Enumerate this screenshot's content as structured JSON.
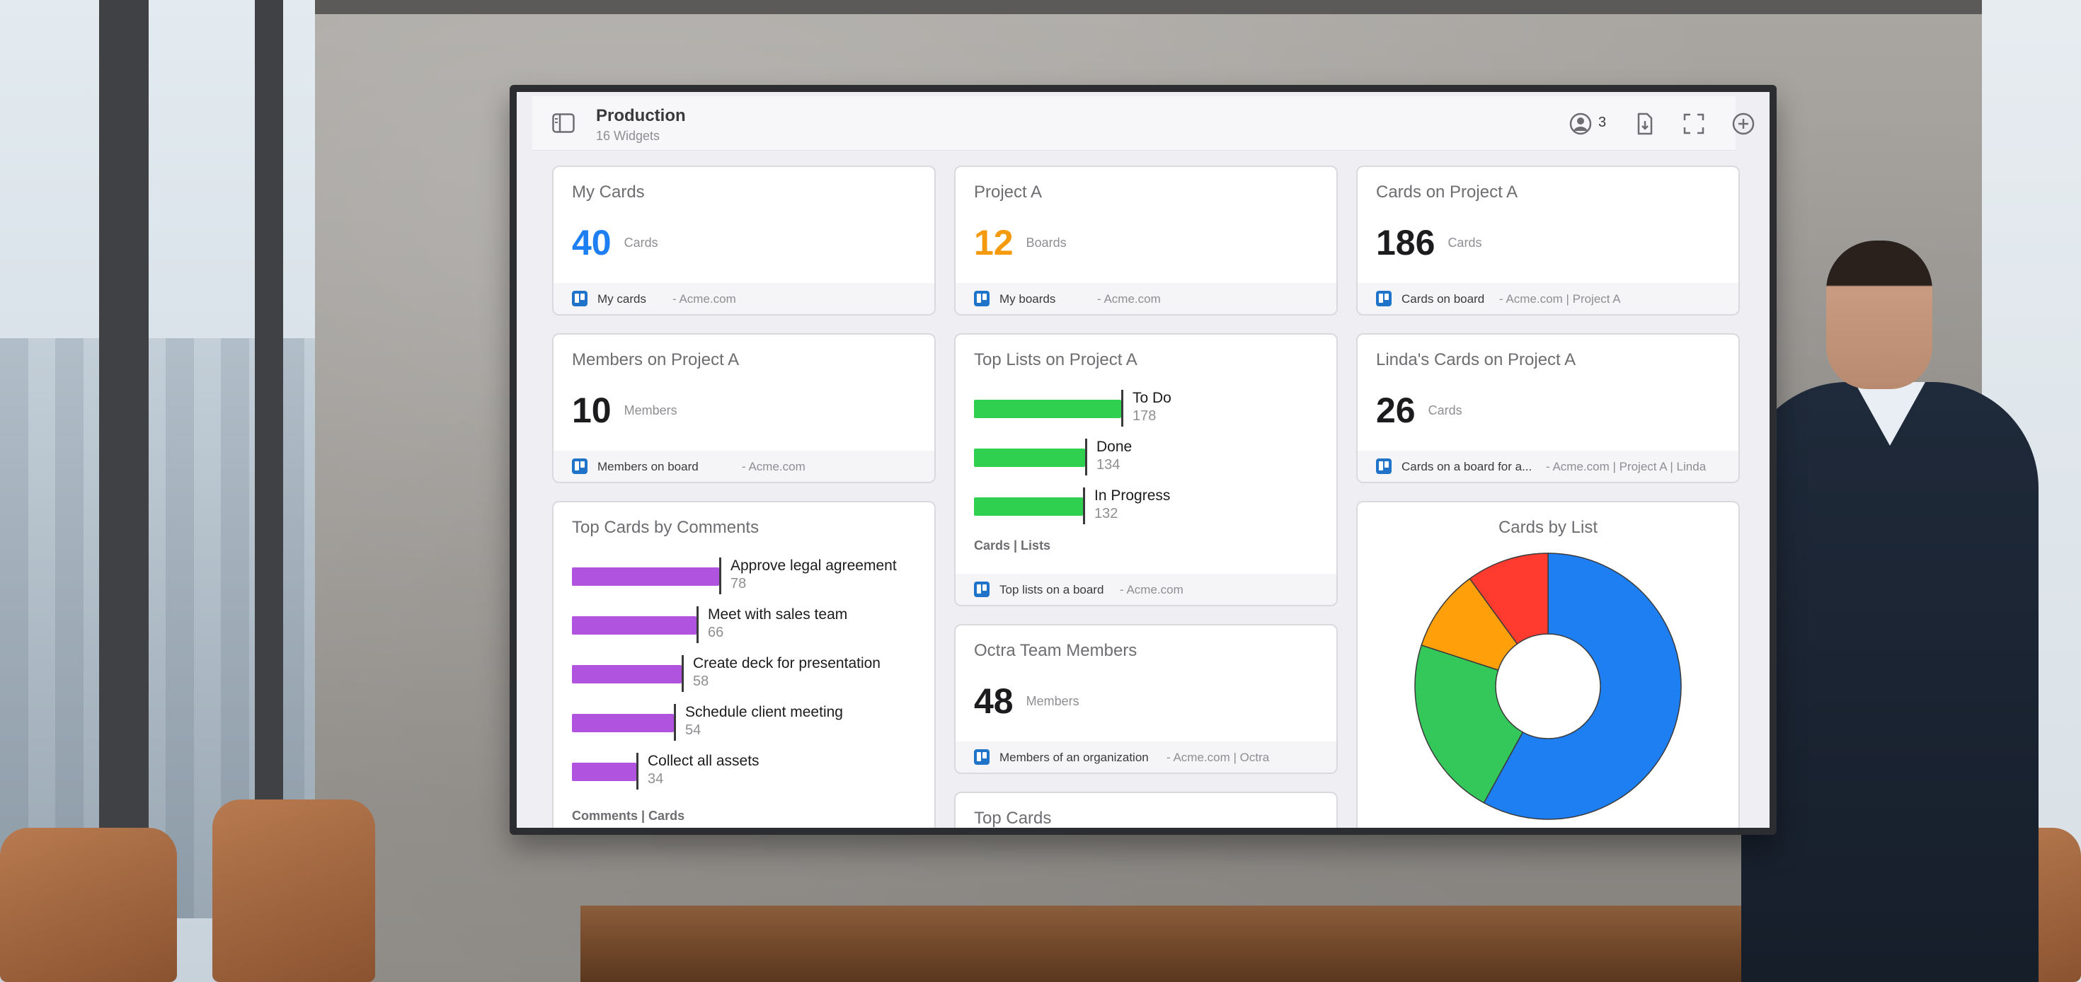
{
  "header": {
    "title": "Production",
    "subtitle": "16 Widgets",
    "members_count": "3"
  },
  "colors": {
    "blue": "#1e7ff2",
    "orange": "#f59a0c",
    "dark": "#1c1c1e",
    "green": "#2fd04f",
    "purple": "#b054e0",
    "red": "#ee2f2f"
  },
  "cards": {
    "my_cards": {
      "title": "My Cards",
      "value": "40",
      "unit": "Cards",
      "source": "My cards",
      "meta": "- Acme.com"
    },
    "project_a": {
      "title": "Project A",
      "value": "12",
      "unit": "Boards",
      "source": "My boards",
      "meta": "- Acme.com"
    },
    "cards_on_project_a": {
      "title": "Cards on Project A",
      "value": "186",
      "unit": "Cards",
      "source": "Cards on board",
      "meta": "- Acme.com | Project A"
    },
    "members_on_project_a": {
      "title": "Members on Project A",
      "value": "10",
      "unit": "Members",
      "source": "Members on board",
      "meta": "- Acme.com"
    },
    "lindas_cards": {
      "title": "Linda's Cards on Project A",
      "value": "26",
      "unit": "Cards",
      "source": "Cards on a board for a...",
      "meta": "- Acme.com | Project A | Linda"
    },
    "octra_team": {
      "title": "Octra Team Members",
      "value": "48",
      "unit": "Members",
      "source": "Members of an organization",
      "meta": "- Acme.com | Octra"
    },
    "top_lists": {
      "title": "Top Lists on Project A",
      "caption": "Cards  |  Lists",
      "source": "Top lists on a board",
      "meta": "- Acme.com"
    },
    "top_cards_comments": {
      "title": "Top Cards by Comments",
      "caption": "Comments | Cards"
    },
    "top_cards": {
      "title": "Top Cards"
    },
    "cards_by_list": {
      "title": "Cards by List"
    }
  },
  "chart_data": [
    {
      "type": "bar",
      "title": "Top Lists on Project A",
      "categories": [
        "To Do",
        "Done",
        "In Progress"
      ],
      "values": [
        178,
        134,
        132
      ],
      "xlabel": "Cards",
      "ylabel": "Lists"
    },
    {
      "type": "bar",
      "title": "Top Cards by Comments",
      "categories": [
        "Approve legal agreement",
        "Meet with sales team",
        "Create deck for presentation",
        "Schedule client meeting",
        "Collect all assets"
      ],
      "values": [
        78,
        66,
        58,
        54,
        34
      ],
      "xlabel": "Comments",
      "ylabel": "Cards"
    },
    {
      "type": "pie",
      "title": "Cards by List",
      "values": [
        0.58,
        0.22,
        0.1,
        0.1
      ],
      "colors": [
        "#1e7ff2",
        "#34c759",
        "#ff9f0a",
        "#ff3b30"
      ]
    }
  ]
}
